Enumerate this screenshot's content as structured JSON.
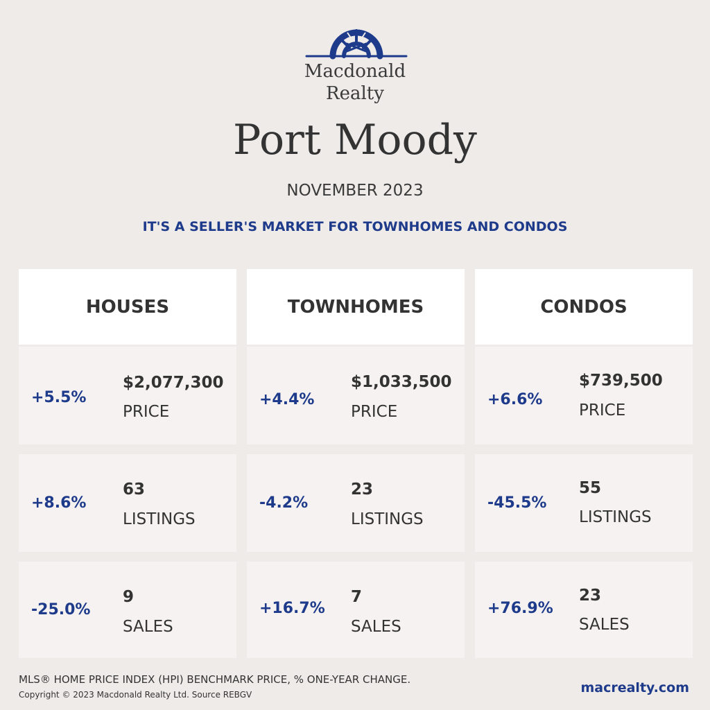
{
  "brand": {
    "line1": "Macdonald",
    "line2": "Realty",
    "logo_icon": "compass-rose-logo",
    "color": "#1e3a8a"
  },
  "city": "Port Moody",
  "month": "NOVEMBER 2023",
  "headline": "IT'S A SELLER'S MARKET FOR TOWNHOMES AND CONDOS",
  "columns": [
    {
      "title": "HOUSES",
      "price": {
        "pct": "+5.5%",
        "value": "$2,077,300",
        "label": "PRICE"
      },
      "listings": {
        "pct": "+8.6%",
        "value": "63",
        "label": "LISTINGS"
      },
      "sales": {
        "pct": "-25.0%",
        "value": "9",
        "label": "SALES"
      }
    },
    {
      "title": "TOWNHOMES",
      "price": {
        "pct": "+4.4%",
        "value": "$1,033,500",
        "label": "PRICE"
      },
      "listings": {
        "pct": "-4.2%",
        "value": "23",
        "label": "LISTINGS"
      },
      "sales": {
        "pct": "+16.7%",
        "value": "7",
        "label": "SALES"
      }
    },
    {
      "title": "CONDOS",
      "price": {
        "pct": "+6.6%",
        "value": "$739,500",
        "label": "PRICE"
      },
      "listings": {
        "pct": "-45.5%",
        "value": "55",
        "label": "LISTINGS"
      },
      "sales": {
        "pct": "+76.9%",
        "value": "23",
        "label": "SALES"
      }
    }
  ],
  "footer": {
    "note": "MLS® HOME PRICE INDEX (HPI) BENCHMARK PRICE, % ONE-YEAR CHANGE.",
    "copyright": "Copyright © 2023 Macdonald Realty Ltd. Source REBGV",
    "website": "macrealty.com"
  },
  "colors": {
    "background": "#eeebe9",
    "accent": "#1e3a8a",
    "card": "#f5f2f1",
    "header": "#ffffff"
  }
}
